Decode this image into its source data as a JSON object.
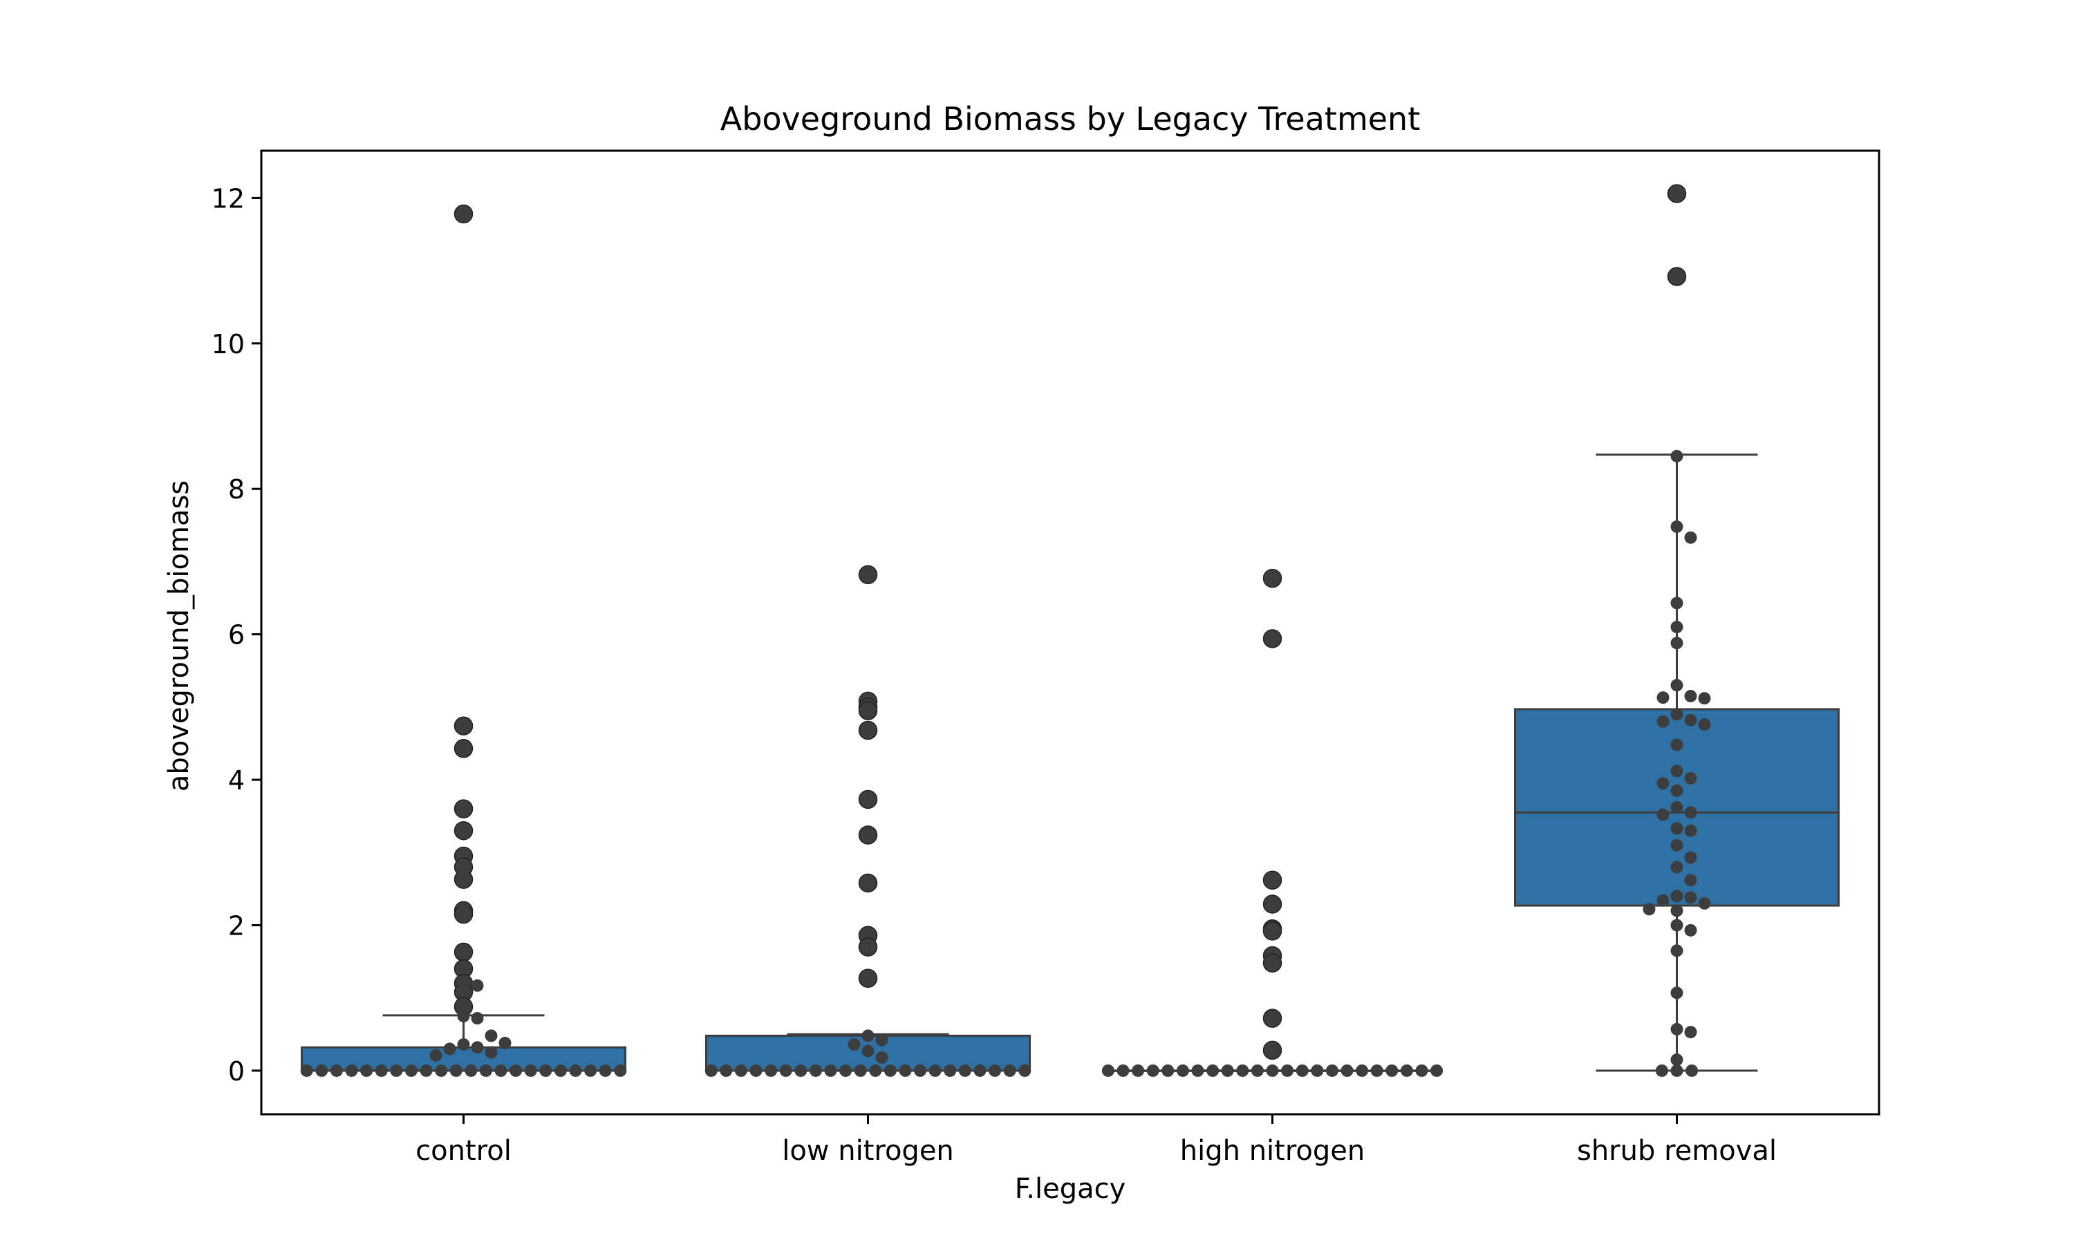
{
  "chart_data": {
    "type": "box",
    "title": "Aboveground Biomass by Legacy Treatment",
    "xlabel": "F.legacy",
    "ylabel": "aboveground_biomass",
    "categories": [
      "control",
      "low nitrogen",
      "high nitrogen",
      "shrub removal"
    ],
    "ylim": [
      -0.6,
      12.65
    ],
    "yticks": [
      0,
      2,
      4,
      6,
      8,
      10,
      12
    ],
    "grid": false,
    "legend": "none",
    "box_color": "#2e72a5",
    "edge_color": "#3d3d3d",
    "point_color": "#3d3d3d",
    "boxes": [
      {
        "category": "control",
        "q1": 0.0,
        "median": 0.0,
        "q3": 0.32,
        "whisker_low": 0.0,
        "whisker_high": 0.76
      },
      {
        "category": "low nitrogen",
        "q1": 0.0,
        "median": 0.0,
        "q3": 0.48,
        "whisker_low": 0.0,
        "whisker_high": 0.5
      },
      {
        "category": "high nitrogen",
        "q1": 0.0,
        "median": 0.0,
        "q3": 0.0,
        "whisker_low": 0.0,
        "whisker_high": 0.0
      },
      {
        "category": "shrub removal",
        "q1": 2.27,
        "median": 3.55,
        "q3": 4.97,
        "whisker_low": 0.0,
        "whisker_high": 8.47
      }
    ],
    "outliers": [
      [
        11.78,
        4.74,
        4.43,
        3.6,
        3.3,
        2.95,
        2.8,
        2.63,
        2.2,
        2.15,
        1.63,
        1.4,
        1.2,
        1.08,
        0.88
      ],
      [
        6.82,
        5.08,
        5.0,
        4.95,
        4.68,
        3.73,
        3.24,
        2.58,
        1.86,
        1.7,
        1.27
      ],
      [
        6.77,
        5.94,
        2.62,
        2.29,
        1.95,
        1.92,
        1.58,
        1.48,
        0.72,
        0.28
      ],
      [
        12.06,
        10.92
      ]
    ],
    "points": [
      [
        0.36,
        0.32,
        0.3,
        0.25,
        0.21,
        0.38,
        0.48,
        0.75,
        0.72,
        1.19,
        1.17,
        2.2,
        2.78
      ],
      [
        0.48,
        0.42,
        0.36,
        0.27,
        0.18
      ],
      [],
      [
        8.45,
        7.48,
        7.33,
        6.43,
        6.1,
        5.88,
        5.3,
        5.15,
        5.13,
        5.12,
        4.9,
        4.82,
        4.8,
        4.76,
        4.48,
        4.12,
        4.02,
        3.95,
        3.85,
        3.62,
        3.55,
        3.52,
        3.33,
        3.3,
        3.1,
        2.93,
        2.8,
        2.62,
        2.4,
        2.38,
        2.34,
        2.3,
        2.22,
        2.2,
        2.0,
        1.93,
        1.65,
        1.07,
        0.57,
        0.53,
        0.15
      ]
    ],
    "zero_counts": [
      22,
      22,
      23,
      3
    ]
  }
}
